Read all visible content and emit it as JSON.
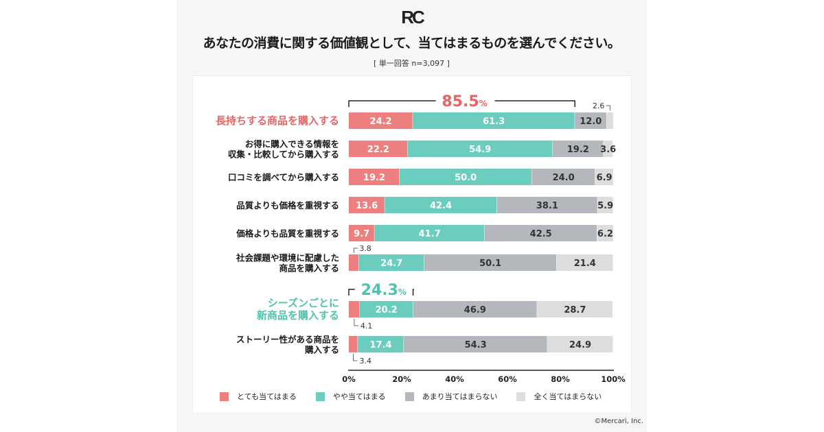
{
  "logo_text": "RC",
  "copyright": "©Mercari, Inc.",
  "colors": {
    "very": "#ee7f7f",
    "somewhat": "#6bcdbd",
    "not_much": "#b4b7bb",
    "not_at_all": "#dcdddd",
    "highlight_red": "#e86565",
    "highlight_teal": "#4ec3ad"
  },
  "chart_data": {
    "type": "bar",
    "orientation": "horizontal-stacked",
    "title": "あなたの消費に関する価値観として、当てはまるものを選んでください。",
    "subtitle": "[ 単一回答 n=3,097 ]",
    "xlabel": "",
    "ylabel": "",
    "xlim": [
      0,
      100
    ],
    "x_ticks": [
      "0%",
      "20%",
      "40%",
      "60%",
      "80%",
      "100%"
    ],
    "legend_position": "bottom",
    "series": [
      {
        "name": "とても当てはまる",
        "color_key": "very"
      },
      {
        "name": "やや当てはまる",
        "color_key": "somewhat"
      },
      {
        "name": "あまり当てはまらない",
        "color_key": "not_much"
      },
      {
        "name": "全く当てはまらない",
        "color_key": "not_at_all"
      }
    ],
    "categories": [
      {
        "label": [
          "長持ちする商品を購入する"
        ],
        "highlight": "red",
        "values": [
          24.2,
          61.3,
          12.0,
          2.6
        ]
      },
      {
        "label": [
          "お得に購入できる情報を",
          "収集・比較してから購入する"
        ],
        "highlight": null,
        "values": [
          22.2,
          54.9,
          19.2,
          3.6
        ]
      },
      {
        "label": [
          "口コミを調べてから購入する"
        ],
        "highlight": null,
        "values": [
          19.2,
          50.0,
          24.0,
          6.9
        ]
      },
      {
        "label": [
          "品質よりも価格を重視する"
        ],
        "highlight": null,
        "values": [
          13.6,
          42.4,
          38.1,
          5.9
        ]
      },
      {
        "label": [
          "価格よりも品質を重視する"
        ],
        "highlight": null,
        "values": [
          9.7,
          41.7,
          42.5,
          6.2
        ]
      },
      {
        "label": [
          "社会課題や環境に配慮した",
          "商品を購入する"
        ],
        "highlight": null,
        "values": [
          3.8,
          24.7,
          50.1,
          21.4
        ]
      },
      {
        "label": [
          "シーズンごとに",
          "新商品を購入する"
        ],
        "highlight": "teal",
        "values": [
          4.1,
          20.2,
          46.9,
          28.7
        ]
      },
      {
        "label": [
          "ストーリー性がある商品を",
          "購入する"
        ],
        "highlight": null,
        "values": [
          3.4,
          17.4,
          54.3,
          24.9
        ]
      }
    ],
    "annotations": [
      {
        "row": 0,
        "text": "85.5",
        "unit": "%",
        "color_key": "highlight_red",
        "span_series": [
          0,
          1
        ]
      },
      {
        "row": 6,
        "text": "24.3",
        "unit": "%",
        "color_key": "highlight_teal",
        "span_series": [
          0,
          1
        ]
      }
    ],
    "callouts": [
      {
        "row": 0,
        "series": 3,
        "text": "2.6",
        "position": "above-right"
      },
      {
        "row": 5,
        "series": 0,
        "text": "3.8",
        "position": "above"
      },
      {
        "row": 6,
        "series": 0,
        "text": "4.1",
        "position": "below"
      },
      {
        "row": 7,
        "series": 0,
        "text": "3.4",
        "position": "below"
      }
    ]
  }
}
